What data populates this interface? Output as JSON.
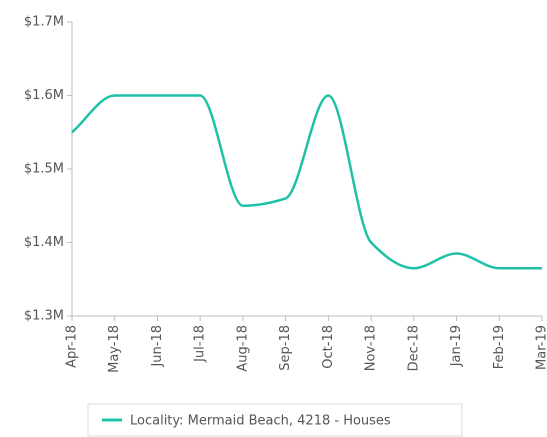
{
  "chart_data": {
    "type": "line",
    "categories": [
      "Apr-18",
      "May-18",
      "Jun-18",
      "Jul-18",
      "Aug-18",
      "Sep-18",
      "Oct-18",
      "Nov-18",
      "Dec-18",
      "Jan-19",
      "Feb-19",
      "Mar-19"
    ],
    "series": [
      {
        "name": "Locality: Mermaid Beach, 4218 - Houses",
        "color": "#1fc1a6",
        "values": [
          1550000,
          1600000,
          1600000,
          1600000,
          1450000,
          1460000,
          1600000,
          1400000,
          1365000,
          1385000,
          1365000,
          1365000
        ]
      }
    ],
    "ylim": [
      1300000,
      1700000
    ],
    "yticks": [
      {
        "value": 1300000,
        "label": "$1.3M"
      },
      {
        "value": 1400000,
        "label": "$1.4M"
      },
      {
        "value": 1500000,
        "label": "$1.5M"
      },
      {
        "value": 1600000,
        "label": "$1.6M"
      },
      {
        "value": 1700000,
        "label": "$1.7M"
      }
    ],
    "legend": "bottom"
  }
}
